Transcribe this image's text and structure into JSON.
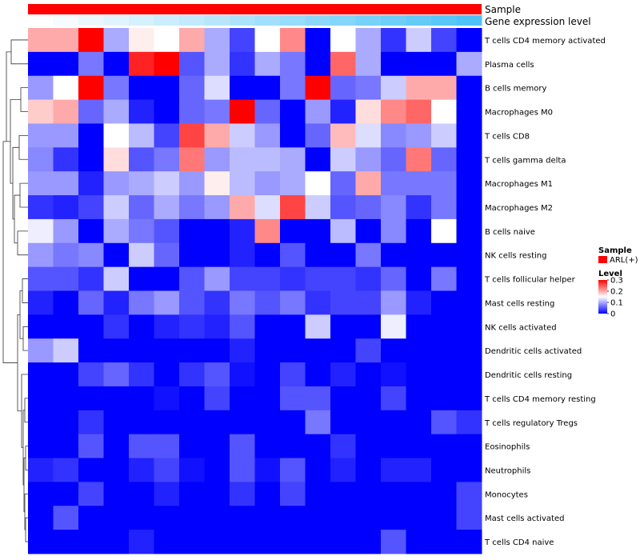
{
  "chart_data": {
    "type": "heatmap",
    "title": "",
    "xlabel": "",
    "ylabel": "",
    "annotation_bars": [
      {
        "label": "Sample",
        "color": "#ff0000"
      },
      {
        "label": "Gene expression level",
        "colors": [
          "#ffffff",
          "#4fc3f7"
        ]
      }
    ],
    "column_count": 18,
    "rows": [
      "T cells CD4 memory activated",
      "Plasma cells",
      "B cells memory",
      "Macrophages M0",
      "T cells CD8",
      "T cells gamma delta",
      "Macrophages M1",
      "Macrophages M2",
      "B cells naive",
      "NK cells resting",
      "T cells follicular helper",
      "Mast cells resting",
      "NK cells activated",
      "Dendritic cells activated",
      "Dendritic cells resting",
      "T cells CD4 memory resting",
      "T cells regulatory  Tregs",
      "Eosinophils",
      "Neutrophils",
      "Monocytes",
      "Mast cells activated",
      "T cells CD4 naive"
    ],
    "values": [
      [
        0.2,
        0.2,
        0.3,
        0.1,
        0.16,
        0.15,
        0.2,
        0.1,
        0.04,
        0.15,
        0.22,
        0.0,
        0.15,
        0.1,
        0.03,
        0.12,
        0.04,
        0.0
      ],
      [
        0.0,
        0.0,
        0.07,
        0.0,
        0.28,
        0.3,
        0.05,
        0.1,
        0.03,
        0.1,
        0.07,
        0.0,
        0.24,
        0.1,
        0.0,
        0.0,
        0.0,
        0.1
      ],
      [
        0.09,
        0.15,
        0.3,
        0.07,
        0.0,
        0.0,
        0.06,
        0.13,
        0.0,
        0.0,
        0.07,
        0.3,
        0.06,
        0.07,
        0.12,
        0.2,
        0.2,
        0.0
      ],
      [
        0.18,
        0.2,
        0.06,
        0.1,
        0.02,
        0.0,
        0.06,
        0.07,
        0.3,
        0.06,
        0.0,
        0.09,
        0.02,
        0.17,
        0.22,
        0.24,
        0.15,
        0.0
      ],
      [
        0.09,
        0.09,
        0.0,
        0.15,
        0.11,
        0.04,
        0.26,
        0.2,
        0.12,
        0.09,
        0.0,
        0.06,
        0.19,
        0.13,
        0.08,
        0.09,
        0.12,
        0.0
      ],
      [
        0.08,
        0.03,
        0.0,
        0.17,
        0.05,
        0.07,
        0.23,
        0.09,
        0.11,
        0.11,
        0.1,
        0.0,
        0.12,
        0.09,
        0.06,
        0.23,
        0.06,
        0.0
      ],
      [
        0.09,
        0.09,
        0.02,
        0.09,
        0.1,
        0.12,
        0.09,
        0.16,
        0.11,
        0.09,
        0.1,
        0.15,
        0.06,
        0.2,
        0.07,
        0.07,
        0.07,
        0.0
      ],
      [
        0.03,
        0.02,
        0.04,
        0.12,
        0.06,
        0.1,
        0.07,
        0.09,
        0.2,
        0.13,
        0.26,
        0.12,
        0.05,
        0.06,
        0.08,
        0.03,
        0.07,
        0.0
      ],
      [
        0.14,
        0.09,
        0.0,
        0.1,
        0.07,
        0.05,
        0.0,
        0.0,
        0.02,
        0.22,
        0.0,
        0.0,
        0.11,
        0.0,
        0.08,
        0.0,
        0.15,
        0.0
      ],
      [
        0.09,
        0.07,
        0.08,
        0.0,
        0.12,
        0.06,
        0.0,
        0.0,
        0.02,
        0.0,
        0.05,
        0.0,
        0.0,
        0.07,
        0.0,
        0.0,
        0.0,
        0.0
      ],
      [
        0.05,
        0.05,
        0.03,
        0.12,
        0.0,
        0.0,
        0.05,
        0.09,
        0.04,
        0.04,
        0.03,
        0.04,
        0.04,
        0.03,
        0.06,
        0.0,
        0.07,
        0.0
      ],
      [
        0.02,
        0.0,
        0.06,
        0.02,
        0.07,
        0.09,
        0.05,
        0.03,
        0.07,
        0.05,
        0.07,
        0.03,
        0.04,
        0.04,
        0.09,
        0.02,
        0.0,
        0.0
      ],
      [
        0.0,
        0.0,
        0.0,
        0.03,
        0.0,
        0.02,
        0.03,
        0.02,
        0.05,
        0.0,
        0.0,
        0.12,
        0.0,
        0.0,
        0.14,
        0.0,
        0.0,
        0.0
      ],
      [
        0.09,
        0.12,
        0.0,
        0.0,
        0.0,
        0.0,
        0.0,
        0.0,
        0.02,
        0.0,
        0.0,
        0.0,
        0.0,
        0.04,
        0.0,
        0.0,
        0.0,
        0.0
      ],
      [
        0.0,
        0.0,
        0.04,
        0.06,
        0.03,
        0.0,
        0.03,
        0.05,
        0.01,
        0.0,
        0.04,
        0.0,
        0.02,
        0.0,
        0.01,
        0.0,
        0.0,
        0.0
      ],
      [
        0.0,
        0.0,
        0.0,
        0.0,
        0.0,
        0.01,
        0.0,
        0.04,
        0.0,
        0.0,
        0.05,
        0.05,
        0.0,
        0.0,
        0.04,
        0.0,
        0.0,
        0.0
      ],
      [
        0.0,
        0.0,
        0.03,
        0.0,
        0.0,
        0.0,
        0.0,
        0.0,
        0.0,
        0.0,
        0.0,
        0.07,
        0.0,
        0.0,
        0.0,
        0.0,
        0.05,
        0.03
      ],
      [
        0.0,
        0.0,
        0.05,
        0.0,
        0.05,
        0.05,
        0.0,
        0.0,
        0.05,
        0.0,
        0.0,
        0.0,
        0.03,
        0.0,
        0.0,
        0.0,
        0.0,
        0.0
      ],
      [
        0.02,
        0.03,
        0.0,
        0.0,
        0.02,
        0.04,
        0.01,
        0.0,
        0.05,
        0.01,
        0.05,
        0.0,
        0.02,
        0.0,
        0.02,
        0.02,
        0.0,
        0.0
      ],
      [
        0.0,
        0.0,
        0.04,
        0.0,
        0.0,
        0.02,
        0.0,
        0.0,
        0.03,
        0.0,
        0.04,
        0.0,
        0.0,
        0.0,
        0.0,
        0.0,
        0.0,
        0.04
      ],
      [
        0.0,
        0.05,
        0.0,
        0.0,
        0.0,
        0.0,
        0.0,
        0.0,
        0.0,
        0.0,
        0.0,
        0.0,
        0.0,
        0.0,
        0.0,
        0.0,
        0.0,
        0.04
      ],
      [
        0.0,
        0.0,
        0.0,
        0.0,
        0.02,
        0.0,
        0.0,
        0.0,
        0.0,
        0.0,
        0.0,
        0.0,
        0.0,
        0.0,
        0.05,
        0.0,
        0.0,
        0.0
      ]
    ],
    "color_scale": {
      "min": 0,
      "mid": 0.15,
      "max": 0.3,
      "low_color": "#0000ff",
      "mid_color": "#ffffff",
      "high_color": "#ff0000"
    },
    "legend": {
      "sample_title": "Sample",
      "sample_entry": "ARL(+)",
      "sample_color": "#ff0000",
      "level_title": "Level",
      "level_ticks": [
        "0.3",
        "0.2",
        "0.1",
        "0"
      ],
      "position": "right"
    },
    "dendrogram": "left"
  }
}
